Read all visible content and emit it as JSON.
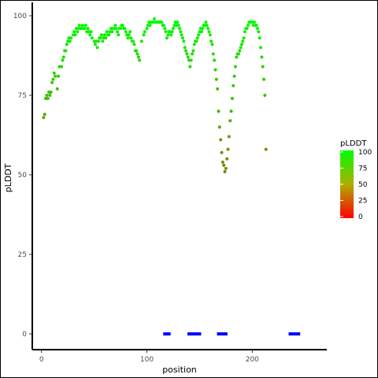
{
  "chart_data": {
    "type": "scatter",
    "xlabel": "position",
    "ylabel": "pLDDT",
    "xlim": [
      -8,
      270
    ],
    "ylim": [
      0,
      100
    ],
    "x_ticks": [
      0,
      100,
      200
    ],
    "y_ticks": [
      0,
      25,
      50,
      75,
      100
    ],
    "grid": false,
    "legend_placement": "right",
    "legend": {
      "title": "pLDDT",
      "labels": [
        "100",
        "75",
        "50",
        "25",
        "0"
      ],
      "gradient_colors": [
        "#00ff00",
        "#ff0000"
      ]
    },
    "color_scale": {
      "low": "#ff0000",
      "high": "#00ff00"
    },
    "series": [
      {
        "points": [
          [
            2,
            68
          ],
          [
            3,
            69
          ],
          [
            4,
            74
          ],
          [
            5,
            75
          ],
          [
            6,
            74
          ],
          [
            7,
            76
          ],
          [
            8,
            75
          ],
          [
            9,
            76
          ],
          [
            10,
            79
          ],
          [
            11,
            80
          ],
          [
            12,
            82
          ],
          [
            13,
            81
          ],
          [
            15,
            77
          ],
          [
            16,
            81
          ],
          [
            17,
            84
          ],
          [
            19,
            84
          ],
          [
            20,
            86
          ],
          [
            21,
            87
          ],
          [
            22,
            89
          ],
          [
            23,
            89
          ],
          [
            24,
            91
          ],
          [
            25,
            92
          ],
          [
            26,
            93
          ],
          [
            27,
            92
          ],
          [
            28,
            93
          ],
          [
            30,
            94
          ],
          [
            31,
            95
          ],
          [
            32,
            94
          ],
          [
            33,
            96
          ],
          [
            34,
            95
          ],
          [
            35,
            96
          ],
          [
            36,
            97
          ],
          [
            37,
            96
          ],
          [
            38,
            96
          ],
          [
            39,
            97
          ],
          [
            40,
            96
          ],
          [
            41,
            96
          ],
          [
            42,
            97
          ],
          [
            43,
            95
          ],
          [
            44,
            96
          ],
          [
            45,
            95
          ],
          [
            46,
            94
          ],
          [
            47,
            95
          ],
          [
            48,
            93
          ],
          [
            50,
            92
          ],
          [
            51,
            91
          ],
          [
            52,
            92
          ],
          [
            53,
            90
          ],
          [
            54,
            92
          ],
          [
            55,
            93
          ],
          [
            56,
            93
          ],
          [
            57,
            94
          ],
          [
            58,
            92
          ],
          [
            59,
            93
          ],
          [
            60,
            94
          ],
          [
            61,
            93
          ],
          [
            62,
            95
          ],
          [
            63,
            94
          ],
          [
            64,
            94
          ],
          [
            65,
            95
          ],
          [
            66,
            96
          ],
          [
            67,
            95
          ],
          [
            68,
            96
          ],
          [
            69,
            96
          ],
          [
            70,
            97
          ],
          [
            71,
            96
          ],
          [
            72,
            95
          ],
          [
            73,
            94
          ],
          [
            74,
            96
          ],
          [
            75,
            96
          ],
          [
            76,
            97
          ],
          [
            77,
            97
          ],
          [
            78,
            96
          ],
          [
            79,
            96
          ],
          [
            80,
            95
          ],
          [
            81,
            94
          ],
          [
            82,
            93
          ],
          [
            83,
            94
          ],
          [
            84,
            95
          ],
          [
            85,
            93
          ],
          [
            86,
            92
          ],
          [
            87,
            92
          ],
          [
            88,
            91
          ],
          [
            89,
            89
          ],
          [
            90,
            89
          ],
          [
            91,
            88
          ],
          [
            92,
            87
          ],
          [
            93,
            86
          ],
          [
            95,
            92
          ],
          [
            97,
            94
          ],
          [
            98,
            95
          ],
          [
            100,
            96
          ],
          [
            101,
            97
          ],
          [
            102,
            98
          ],
          [
            103,
            97
          ],
          [
            104,
            98
          ],
          [
            105,
            98
          ],
          [
            106,
            98
          ],
          [
            107,
            99
          ],
          [
            108,
            98
          ],
          [
            109,
            98
          ],
          [
            110,
            98
          ],
          [
            111,
            98
          ],
          [
            112,
            98
          ],
          [
            113,
            98
          ],
          [
            114,
            98
          ],
          [
            115,
            97
          ],
          [
            116,
            97
          ],
          [
            117,
            96
          ],
          [
            118,
            95
          ],
          [
            119,
            93
          ],
          [
            120,
            94
          ],
          [
            121,
            95
          ],
          [
            122,
            95
          ],
          [
            123,
            94
          ],
          [
            124,
            95
          ],
          [
            125,
            96
          ],
          [
            126,
            97
          ],
          [
            127,
            98
          ],
          [
            128,
            97
          ],
          [
            129,
            98
          ],
          [
            130,
            97
          ],
          [
            131,
            96
          ],
          [
            132,
            95
          ],
          [
            133,
            94
          ],
          [
            134,
            93
          ],
          [
            135,
            92
          ],
          [
            136,
            90
          ],
          [
            137,
            89
          ],
          [
            138,
            88
          ],
          [
            139,
            87
          ],
          [
            140,
            86
          ],
          [
            141,
            84
          ],
          [
            142,
            86
          ],
          [
            143,
            88
          ],
          [
            144,
            89
          ],
          [
            145,
            91
          ],
          [
            146,
            92
          ],
          [
            147,
            92
          ],
          [
            148,
            93
          ],
          [
            149,
            94
          ],
          [
            150,
            95
          ],
          [
            151,
            96
          ],
          [
            152,
            95
          ],
          [
            153,
            96
          ],
          [
            154,
            97
          ],
          [
            155,
            97
          ],
          [
            156,
            98
          ],
          [
            157,
            97
          ],
          [
            158,
            96
          ],
          [
            159,
            95
          ],
          [
            160,
            94
          ],
          [
            161,
            92
          ],
          [
            162,
            91
          ],
          [
            163,
            88
          ],
          [
            164,
            86
          ],
          [
            165,
            83
          ],
          [
            166,
            80
          ],
          [
            167,
            77
          ],
          [
            168,
            70
          ],
          [
            169,
            65
          ],
          [
            170,
            61
          ],
          [
            171,
            57
          ],
          [
            172,
            54
          ],
          [
            173,
            53
          ],
          [
            174,
            51
          ],
          [
            175,
            52
          ],
          [
            176,
            55
          ],
          [
            177,
            58
          ],
          [
            178,
            62
          ],
          [
            179,
            67
          ],
          [
            180,
            70
          ],
          [
            181,
            74
          ],
          [
            182,
            78
          ],
          [
            183,
            81
          ],
          [
            184,
            84
          ],
          [
            185,
            87
          ],
          [
            186,
            88
          ],
          [
            187,
            88
          ],
          [
            188,
            89
          ],
          [
            189,
            90
          ],
          [
            190,
            91
          ],
          [
            191,
            92
          ],
          [
            192,
            93
          ],
          [
            193,
            95
          ],
          [
            194,
            96
          ],
          [
            195,
            96
          ],
          [
            196,
            97
          ],
          [
            197,
            98
          ],
          [
            198,
            98
          ],
          [
            199,
            98
          ],
          [
            200,
            98
          ],
          [
            201,
            97
          ],
          [
            202,
            98
          ],
          [
            203,
            97
          ],
          [
            204,
            97
          ],
          [
            205,
            96
          ],
          [
            206,
            95
          ],
          [
            207,
            93
          ],
          [
            208,
            90
          ],
          [
            209,
            87
          ],
          [
            210,
            84
          ],
          [
            211,
            80
          ],
          [
            212,
            75
          ],
          [
            213,
            58
          ]
        ]
      },
      {
        "name": "",
        "color": "#0000ff",
        "points": [
          [
            117,
            0
          ],
          [
            118,
            0
          ],
          [
            119,
            0
          ],
          [
            121,
            0
          ],
          [
            140,
            0
          ],
          [
            141,
            0
          ],
          [
            142,
            0
          ],
          [
            143,
            0
          ],
          [
            144,
            0
          ],
          [
            145,
            0
          ],
          [
            146,
            0
          ],
          [
            147,
            0
          ],
          [
            148,
            0
          ],
          [
            149,
            0
          ],
          [
            150,
            0
          ],
          [
            168,
            0
          ],
          [
            169,
            0
          ],
          [
            170,
            0
          ],
          [
            171,
            0
          ],
          [
            172,
            0
          ],
          [
            173,
            0
          ],
          [
            174,
            0
          ],
          [
            175,
            0
          ],
          [
            236,
            0
          ],
          [
            237,
            0
          ],
          [
            238,
            0
          ],
          [
            239,
            0
          ],
          [
            240,
            0
          ],
          [
            241,
            0
          ],
          [
            243,
            0
          ],
          [
            244,
            0
          ]
        ]
      }
    ]
  }
}
